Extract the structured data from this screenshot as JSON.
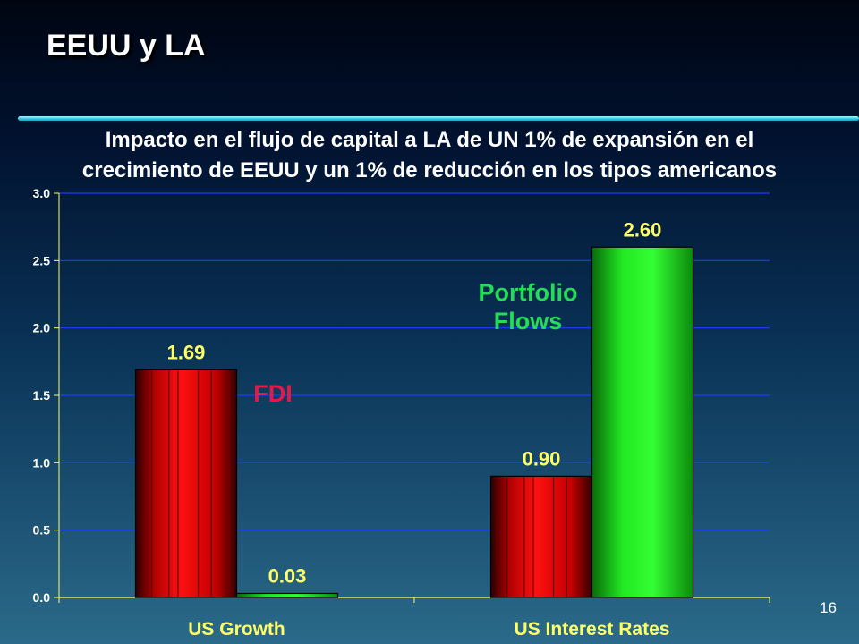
{
  "slide": {
    "title": "EEUU y LA",
    "subtitle_line1": "Impacto en el flujo de capital a LA de UN 1% de expansión en el",
    "subtitle_line2": "crecimiento de EEUU y un 1% de reducción en los tipos americanos",
    "page_number": "16"
  },
  "colors": {
    "fdi": "#ff1a1a",
    "portfolio": "#22ee22",
    "fdi_label": "#e8174a",
    "portfolio_label": "#22dd55",
    "gridline": "#1a3cff",
    "axis_labels": "#ffff66"
  },
  "chart_data": {
    "type": "bar",
    "categories": [
      "US Growth",
      "US Interest Rates"
    ],
    "series": [
      {
        "name": "FDI",
        "values": [
          1.69,
          0.9
        ]
      },
      {
        "name": "Portfolio Flows",
        "values": [
          0.03,
          2.6
        ]
      }
    ],
    "data_labels": [
      [
        "1.69",
        "0.90"
      ],
      [
        "0.03",
        "2.60"
      ]
    ],
    "ylim": [
      0,
      3.0
    ],
    "yticks": [
      "0.0",
      "0.5",
      "1.0",
      "1.5",
      "2.0",
      "2.5",
      "3.0"
    ],
    "grid": true,
    "legend": "inline labels"
  }
}
